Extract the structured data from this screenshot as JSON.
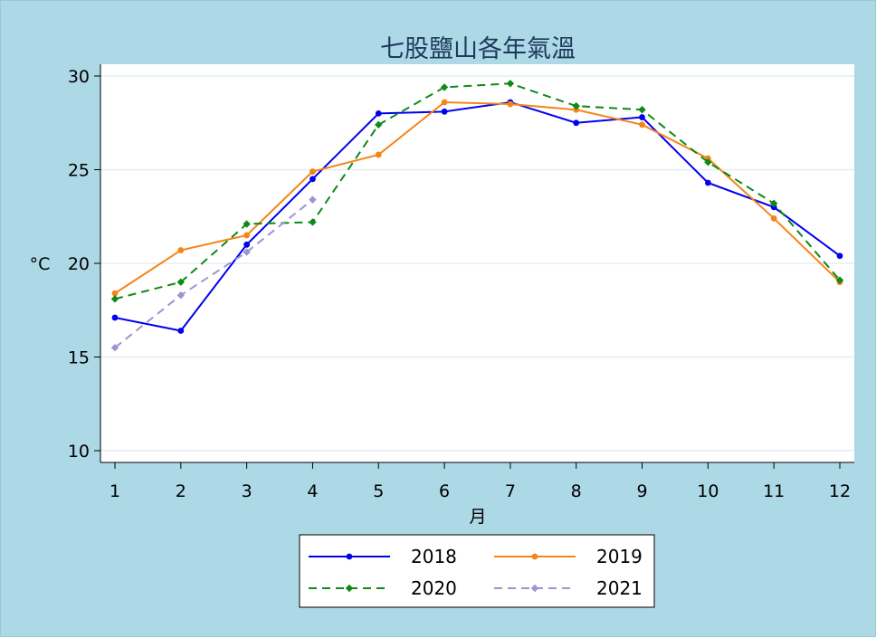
{
  "chart_data": {
    "type": "line",
    "title": "七股鹽山各年氣溫",
    "xlabel": "月",
    "ylabel": "°C",
    "x": [
      1,
      2,
      3,
      4,
      5,
      6,
      7,
      8,
      9,
      10,
      11,
      12
    ],
    "xlim": [
      1,
      12
    ],
    "ylim": [
      10,
      30
    ],
    "yticks": [
      10,
      15,
      20,
      25,
      30
    ],
    "grid": true,
    "legend_position": "bottom",
    "series": [
      {
        "name": "2018",
        "color": "#0000ee",
        "dash": "solid",
        "marker": "circle",
        "values": [
          17.1,
          16.4,
          21.0,
          24.5,
          28.0,
          28.1,
          28.6,
          27.5,
          27.8,
          24.3,
          23.0,
          20.4
        ]
      },
      {
        "name": "2019",
        "color": "#f58518",
        "dash": "solid",
        "marker": "circle",
        "values": [
          18.4,
          20.7,
          21.5,
          24.9,
          25.8,
          28.6,
          28.5,
          28.2,
          27.4,
          25.6,
          22.4,
          19.0
        ]
      },
      {
        "name": "2020",
        "color": "#0e8a16",
        "dash": "dash",
        "marker": "diamond",
        "values": [
          18.1,
          19.0,
          22.1,
          22.2,
          27.4,
          29.4,
          29.6,
          28.4,
          28.2,
          25.4,
          23.2,
          19.1
        ]
      },
      {
        "name": "2021",
        "color": "#9b95d3",
        "dash": "dash",
        "marker": "diamond",
        "values": [
          15.5,
          18.3,
          20.6,
          23.4,
          null,
          null,
          null,
          null,
          null,
          null,
          null,
          null
        ]
      }
    ]
  }
}
